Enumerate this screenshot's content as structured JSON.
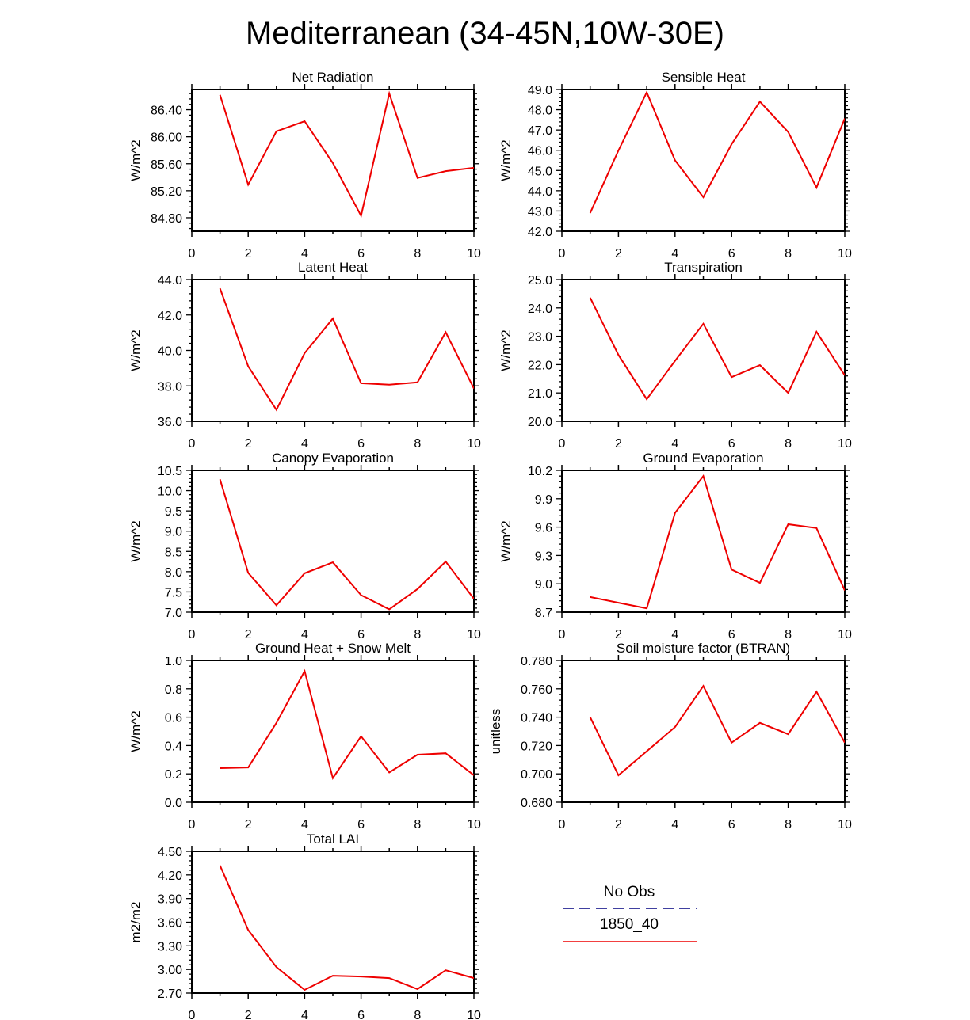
{
  "title": "Mediterranean (34-45N,10W-30E)",
  "colors": {
    "series": "#ee0000",
    "obs": "#000080",
    "axis": "#000000"
  },
  "legend": {
    "obs_label": "No Obs",
    "model_label": "1850_40"
  },
  "chart_data": [
    {
      "type": "line",
      "title": "Net Radiation",
      "ylabel": "W/m^2",
      "x": [
        1,
        2,
        3,
        4,
        5,
        6,
        7,
        8,
        9,
        10
      ],
      "xlim": [
        0,
        10
      ],
      "xticks": [
        "0",
        "2",
        "4",
        "6",
        "8",
        "10"
      ],
      "ylim": [
        84.6,
        86.7
      ],
      "yticks": [
        "84.80",
        "85.20",
        "85.60",
        "86.00",
        "86.40"
      ],
      "series": [
        {
          "name": "1850_40",
          "values": [
            86.62,
            85.29,
            86.08,
            86.23,
            85.61,
            84.83,
            86.64,
            85.39,
            85.49,
            85.54
          ]
        }
      ]
    },
    {
      "type": "line",
      "title": "Sensible Heat",
      "ylabel": "W/m^2",
      "x": [
        1,
        2,
        3,
        4,
        5,
        6,
        7,
        8,
        9,
        10
      ],
      "xlim": [
        0,
        10
      ],
      "xticks": [
        "0",
        "2",
        "4",
        "6",
        "8",
        "10"
      ],
      "ylim": [
        42,
        49
      ],
      "yticks": [
        "42.0",
        "43.0",
        "44.0",
        "45.0",
        "46.0",
        "47.0",
        "48.0",
        "49.0"
      ],
      "series": [
        {
          "name": "1850_40",
          "values": [
            42.9,
            45.99,
            48.86,
            45.5,
            43.68,
            46.3,
            48.4,
            46.9,
            44.16,
            47.57
          ]
        }
      ]
    },
    {
      "type": "line",
      "title": "Latent Heat",
      "ylabel": "W/m^2",
      "x": [
        1,
        2,
        3,
        4,
        5,
        6,
        7,
        8,
        9,
        10
      ],
      "xlim": [
        0,
        10
      ],
      "xticks": [
        "0",
        "2",
        "4",
        "6",
        "8",
        "10"
      ],
      "ylim": [
        36,
        44
      ],
      "yticks": [
        "36.0",
        "38.0",
        "40.0",
        "42.0",
        "44.0"
      ],
      "series": [
        {
          "name": "1850_40",
          "values": [
            43.5,
            39.1,
            36.65,
            39.85,
            41.8,
            38.15,
            38.07,
            38.2,
            41.03,
            37.85
          ]
        }
      ]
    },
    {
      "type": "line",
      "title": "Transpiration",
      "ylabel": "W/m^2",
      "x": [
        1,
        2,
        3,
        4,
        5,
        6,
        7,
        8,
        9,
        10
      ],
      "xlim": [
        0,
        10
      ],
      "xticks": [
        "0",
        "2",
        "4",
        "6",
        "8",
        "10"
      ],
      "ylim": [
        20,
        25
      ],
      "yticks": [
        "20.0",
        "21.0",
        "22.0",
        "23.0",
        "24.0",
        "25.0"
      ],
      "series": [
        {
          "name": "1850_40",
          "values": [
            24.36,
            22.34,
            20.78,
            22.13,
            23.44,
            21.56,
            21.98,
            21.0,
            23.16,
            21.62
          ]
        }
      ]
    },
    {
      "type": "line",
      "title": "Canopy Evaporation",
      "ylabel": "W/m^2",
      "x": [
        1,
        2,
        3,
        4,
        5,
        6,
        7,
        8,
        9,
        10
      ],
      "xlim": [
        0,
        10
      ],
      "xticks": [
        "0",
        "2",
        "4",
        "6",
        "8",
        "10"
      ],
      "ylim": [
        7,
        10.5
      ],
      "yticks": [
        "7.0",
        "7.5",
        "8.0",
        "8.5",
        "9.0",
        "9.5",
        "10.0",
        "10.5"
      ],
      "series": [
        {
          "name": "1850_40",
          "values": [
            10.28,
            7.97,
            7.17,
            7.96,
            8.23,
            7.42,
            7.07,
            7.57,
            8.25,
            7.33
          ]
        }
      ]
    },
    {
      "type": "line",
      "title": "Ground Evaporation",
      "ylabel": "W/m^2",
      "x": [
        1,
        2,
        3,
        4,
        5,
        6,
        7,
        8,
        9,
        10
      ],
      "xlim": [
        0,
        10
      ],
      "xticks": [
        "0",
        "2",
        "4",
        "6",
        "8",
        "10"
      ],
      "ylim": [
        8.7,
        10.2
      ],
      "yticks": [
        "8.7",
        "9.0",
        "9.3",
        "9.6",
        "9.9",
        "10.2"
      ],
      "series": [
        {
          "name": "1850_40",
          "values": [
            8.86,
            8.8,
            8.74,
            9.75,
            10.14,
            9.15,
            9.01,
            9.63,
            9.59,
            8.93
          ]
        }
      ]
    },
    {
      "type": "line",
      "title": "Ground Heat + Snow Melt",
      "ylabel": "W/m^2",
      "x": [
        1,
        2,
        3,
        4,
        5,
        6,
        7,
        8,
        9,
        10
      ],
      "xlim": [
        0,
        10
      ],
      "xticks": [
        "0",
        "2",
        "4",
        "6",
        "8",
        "10"
      ],
      "ylim": [
        0,
        1
      ],
      "yticks": [
        "0.0",
        "0.2",
        "0.4",
        "0.6",
        "0.8",
        "1.0"
      ],
      "series": [
        {
          "name": "1850_40",
          "values": [
            0.24,
            0.245,
            0.56,
            0.925,
            0.17,
            0.465,
            0.21,
            0.335,
            0.345,
            0.19
          ]
        }
      ]
    },
    {
      "type": "line",
      "title": "Soil moisture factor (BTRAN)",
      "ylabel": "unitless",
      "x": [
        1,
        2,
        3,
        4,
        5,
        6,
        7,
        8,
        9,
        10
      ],
      "xlim": [
        0,
        10
      ],
      "xticks": [
        "0",
        "2",
        "4",
        "6",
        "8",
        "10"
      ],
      "ylim": [
        0.68,
        0.78
      ],
      "yticks": [
        "0.680",
        "0.700",
        "0.720",
        "0.740",
        "0.760",
        "0.780"
      ],
      "series": [
        {
          "name": "1850_40",
          "values": [
            0.74,
            0.699,
            0.716,
            0.733,
            0.762,
            0.722,
            0.736,
            0.728,
            0.758,
            0.722
          ]
        }
      ]
    },
    {
      "type": "line",
      "title": "Total LAI",
      "ylabel": "m2/m2",
      "x": [
        1,
        2,
        3,
        4,
        5,
        6,
        7,
        8,
        9,
        10
      ],
      "xlim": [
        0,
        10
      ],
      "xticks": [
        "0",
        "2",
        "4",
        "6",
        "8",
        "10"
      ],
      "ylim": [
        2.7,
        4.5
      ],
      "yticks": [
        "2.70",
        "3.00",
        "3.30",
        "3.60",
        "3.90",
        "4.20",
        "4.50"
      ],
      "series": [
        {
          "name": "1850_40",
          "values": [
            4.32,
            3.5,
            3.03,
            2.74,
            2.92,
            2.91,
            2.89,
            2.75,
            2.99,
            2.89
          ]
        }
      ]
    }
  ]
}
